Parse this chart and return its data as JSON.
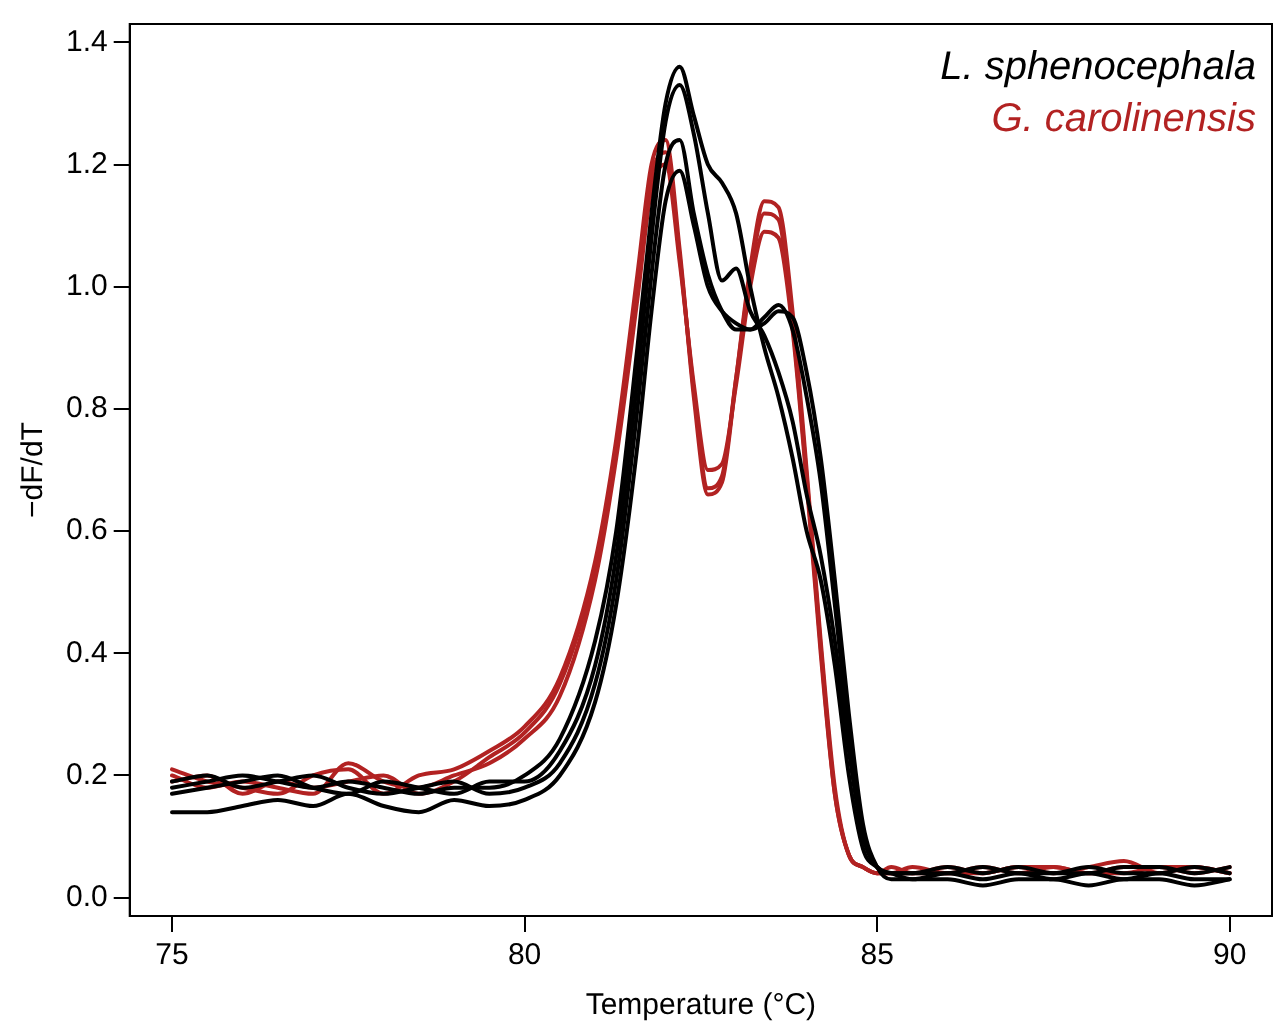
{
  "chart_data": {
    "type": "line",
    "xlabel": "Temperature (°C)",
    "ylabel": "−dF/dT",
    "x": [
      75,
      75.5,
      76,
      76.5,
      77,
      77.5,
      78,
      78.5,
      79,
      79.5,
      80,
      80.5,
      81,
      81.3,
      81.6,
      81.8,
      82,
      82.2,
      82.4,
      82.6,
      82.8,
      83,
      83.2,
      83.4,
      83.6,
      83.8,
      84,
      84.2,
      84.4,
      84.6,
      84.8,
      85,
      85.2,
      85.5,
      86,
      86.5,
      87,
      87.5,
      88,
      88.5,
      89,
      89.5,
      90
    ],
    "xlim": [
      74.4,
      90.6
    ],
    "xticks": [
      75,
      80,
      85,
      90
    ],
    "ylim": [
      -0.03,
      1.43
    ],
    "yticks": [
      {
        "value": 0,
        "label": "0.0"
      },
      0.2,
      0.4,
      0.6,
      0.8,
      {
        "value": 1,
        "label": "1.0"
      },
      1.2,
      1.4
    ],
    "grid": false,
    "legend": "top right",
    "marker": "none",
    "line_style": "solid",
    "series": [
      {
        "name": "L. sphenocephala",
        "color": "#000000",
        "values": [
          0.18,
          0.19,
          0.2,
          0.19,
          0.18,
          0.19,
          0.18,
          0.17,
          0.18,
          0.18,
          0.2,
          0.26,
          0.42,
          0.6,
          0.9,
          1.12,
          1.3,
          1.36,
          1.28,
          1.2,
          1.17,
          1.12,
          1.0,
          0.9,
          0.82,
          0.72,
          0.6,
          0.52,
          0.38,
          0.2,
          0.08,
          0.05,
          0.04,
          0.04,
          0.04,
          0.05,
          0.04,
          0.04,
          0.05,
          0.04,
          0.04,
          0.05,
          0.04
        ]
      },
      {
        "color": "#000000",
        "values": [
          0.17,
          0.18,
          0.19,
          0.2,
          0.18,
          0.17,
          0.19,
          0.18,
          0.17,
          0.19,
          0.19,
          0.24,
          0.38,
          0.56,
          0.85,
          1.08,
          1.27,
          1.33,
          1.25,
          1.12,
          1.01,
          1.03,
          0.96,
          0.92,
          0.86,
          0.78,
          0.66,
          0.56,
          0.42,
          0.24,
          0.1,
          0.05,
          0.04,
          0.03,
          0.04,
          0.03,
          0.04,
          0.03,
          0.04,
          0.03,
          0.04,
          0.03,
          0.03
        ]
      },
      {
        "color": "#000000",
        "values": [
          0.19,
          0.2,
          0.18,
          0.19,
          0.2,
          0.18,
          0.17,
          0.18,
          0.19,
          0.17,
          0.18,
          0.22,
          0.35,
          0.52,
          0.8,
          1.02,
          1.2,
          1.24,
          1.12,
          1.02,
          0.96,
          0.93,
          0.93,
          0.95,
          0.97,
          0.93,
          0.82,
          0.68,
          0.48,
          0.27,
          0.11,
          0.05,
          0.04,
          0.04,
          0.05,
          0.04,
          0.05,
          0.04,
          0.04,
          0.05,
          0.05,
          0.04,
          0.05
        ]
      },
      {
        "color": "#000000",
        "values": [
          0.14,
          0.14,
          0.15,
          0.16,
          0.15,
          0.17,
          0.15,
          0.14,
          0.16,
          0.15,
          0.16,
          0.2,
          0.32,
          0.48,
          0.74,
          0.96,
          1.14,
          1.19,
          1.1,
          1.0,
          0.96,
          0.94,
          0.93,
          0.94,
          0.96,
          0.95,
          0.86,
          0.72,
          0.52,
          0.3,
          0.12,
          0.05,
          0.03,
          0.03,
          0.03,
          0.02,
          0.03,
          0.03,
          0.02,
          0.03,
          0.03,
          0.02,
          0.03
        ]
      },
      {
        "name": "G. carolinensis",
        "color": "#b22222",
        "values": [
          0.21,
          0.19,
          0.18,
          0.17,
          0.2,
          0.21,
          0.17,
          0.2,
          0.21,
          0.24,
          0.28,
          0.36,
          0.55,
          0.75,
          1.02,
          1.2,
          1.24,
          1.06,
          0.82,
          0.66,
          0.68,
          0.85,
          1.03,
          1.14,
          1.13,
          0.96,
          0.7,
          0.42,
          0.18,
          0.07,
          0.05,
          0.04,
          0.04,
          0.04,
          0.05,
          0.04,
          0.05,
          0.04,
          0.05,
          0.06,
          0.04,
          0.05,
          0.04
        ]
      },
      {
        "color": "#b22222",
        "values": [
          0.2,
          0.18,
          0.19,
          0.18,
          0.17,
          0.22,
          0.19,
          0.18,
          0.2,
          0.22,
          0.26,
          0.33,
          0.52,
          0.72,
          0.98,
          1.16,
          1.2,
          1.04,
          0.84,
          0.7,
          0.71,
          0.84,
          1.0,
          1.09,
          1.08,
          0.93,
          0.68,
          0.4,
          0.17,
          0.07,
          0.05,
          0.04,
          0.04,
          0.05,
          0.04,
          0.05,
          0.04,
          0.05,
          0.04,
          0.05,
          0.05,
          0.04,
          0.05
        ]
      },
      {
        "color": "#b22222",
        "values": [
          0.19,
          0.2,
          0.17,
          0.19,
          0.18,
          0.19,
          0.2,
          0.17,
          0.19,
          0.23,
          0.27,
          0.35,
          0.54,
          0.74,
          1.0,
          1.18,
          1.22,
          1.05,
          0.83,
          0.67,
          0.69,
          0.85,
          1.02,
          1.12,
          1.11,
          0.94,
          0.69,
          0.41,
          0.17,
          0.07,
          0.05,
          0.04,
          0.05,
          0.04,
          0.04,
          0.04,
          0.05,
          0.05,
          0.04,
          0.04,
          0.05,
          0.05,
          0.04
        ]
      }
    ]
  }
}
